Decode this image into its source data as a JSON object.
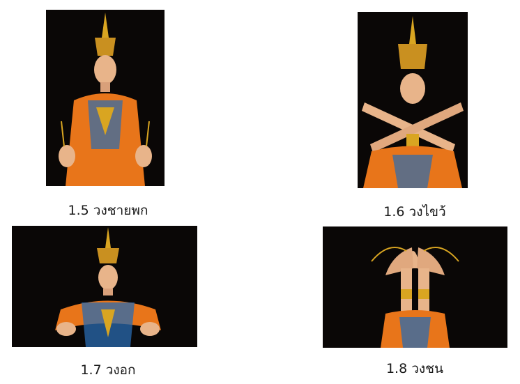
{
  "figures": [
    {
      "caption": "1.5 วงชายพก"
    },
    {
      "caption": "1.6 วงไขว้"
    },
    {
      "caption": "1.7 วงอก"
    },
    {
      "caption": "1.8 วงชน"
    }
  ],
  "colors": {
    "background": "#ffffff",
    "photo_background": "#0a0706",
    "gold": "#d9a521",
    "costume_orange": "#e8751a",
    "costume_blue": "#2a6bb0",
    "skin": "#e8b48a"
  }
}
